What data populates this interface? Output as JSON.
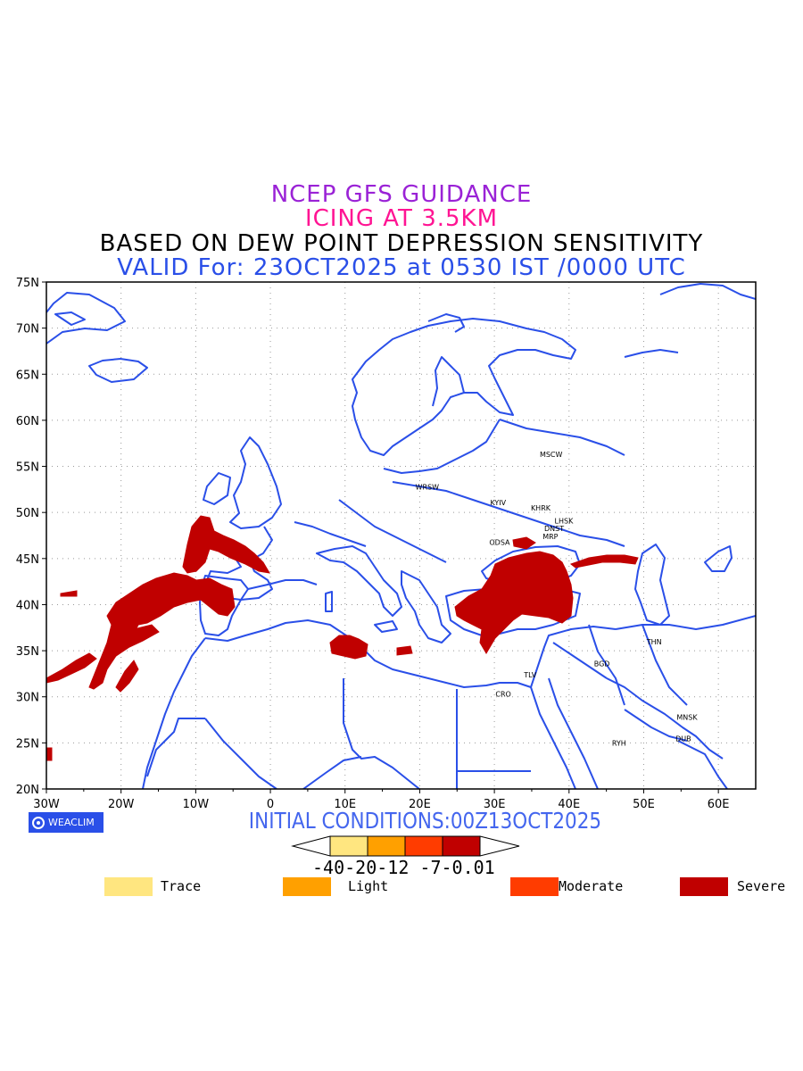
{
  "titles": {
    "line1": "NCEP GFS GUIDANCE",
    "line2": "ICING AT 3.5KM",
    "line3": "BASED ON DEW POINT DEPRESSION SENSITIVITY",
    "line4": "VALID For: 23OCT2025 at 0530 IST /0000 UTC"
  },
  "axes": {
    "lat_labels": [
      "75N",
      "70N",
      "65N",
      "60N",
      "55N",
      "50N",
      "45N",
      "40N",
      "35N",
      "30N",
      "25N",
      "20N"
    ],
    "lon_labels": [
      "30W",
      "20W",
      "10W",
      "0",
      "10E",
      "20E",
      "30E",
      "40E",
      "50E",
      "60E"
    ],
    "lat_range": [
      20,
      75
    ],
    "lon_range": [
      -30,
      65
    ],
    "grid": "dotted"
  },
  "cities": [
    {
      "name": "MSCW",
      "lon": 37.6,
      "lat": 56.0
    },
    {
      "name": "WRSW",
      "lon": 21.0,
      "lat": 52.5
    },
    {
      "name": "KYIV",
      "lon": 30.5,
      "lat": 50.8
    },
    {
      "name": "KHRK",
      "lon": 36.2,
      "lat": 50.2
    },
    {
      "name": "LHSK",
      "lon": 39.3,
      "lat": 48.8
    },
    {
      "name": "DNST",
      "lon": 38.0,
      "lat": 48.0
    },
    {
      "name": "MRP",
      "lon": 37.5,
      "lat": 47.1
    },
    {
      "name": "ODSA",
      "lon": 30.7,
      "lat": 46.5
    },
    {
      "name": "THN",
      "lon": 51.4,
      "lat": 35.7
    },
    {
      "name": "BGD",
      "lon": 44.4,
      "lat": 33.3
    },
    {
      "name": "TLV",
      "lon": 34.8,
      "lat": 32.1
    },
    {
      "name": "CRO",
      "lon": 31.2,
      "lat": 30.0
    },
    {
      "name": "MNSK",
      "lon": 55.8,
      "lat": 27.5
    },
    {
      "name": "DUB",
      "lon": 55.3,
      "lat": 25.2
    },
    {
      "name": "RYH",
      "lon": 46.7,
      "lat": 24.7
    }
  ],
  "logo": "WEACLIM",
  "initial_conditions": "INITIAL CONDITIONS:00Z13OCT2025",
  "colorbar": {
    "labels_text": "-40-20-12 -7-0.01",
    "colors": [
      "#ffe680",
      "#ffa000",
      "#ff3c00",
      "#c00000"
    ]
  },
  "legend": [
    {
      "label": "Trace",
      "color": "#ffe680"
    },
    {
      "label": "Light",
      "color": "#ffa000"
    },
    {
      "label": "Moderate",
      "color": "#ff3c00"
    },
    {
      "label": "Severe",
      "color": "#c00000"
    }
  ],
  "icing_areas_severity": "Severe",
  "colors": {
    "coast": "#2a4fe8",
    "severe": "#c00000"
  }
}
